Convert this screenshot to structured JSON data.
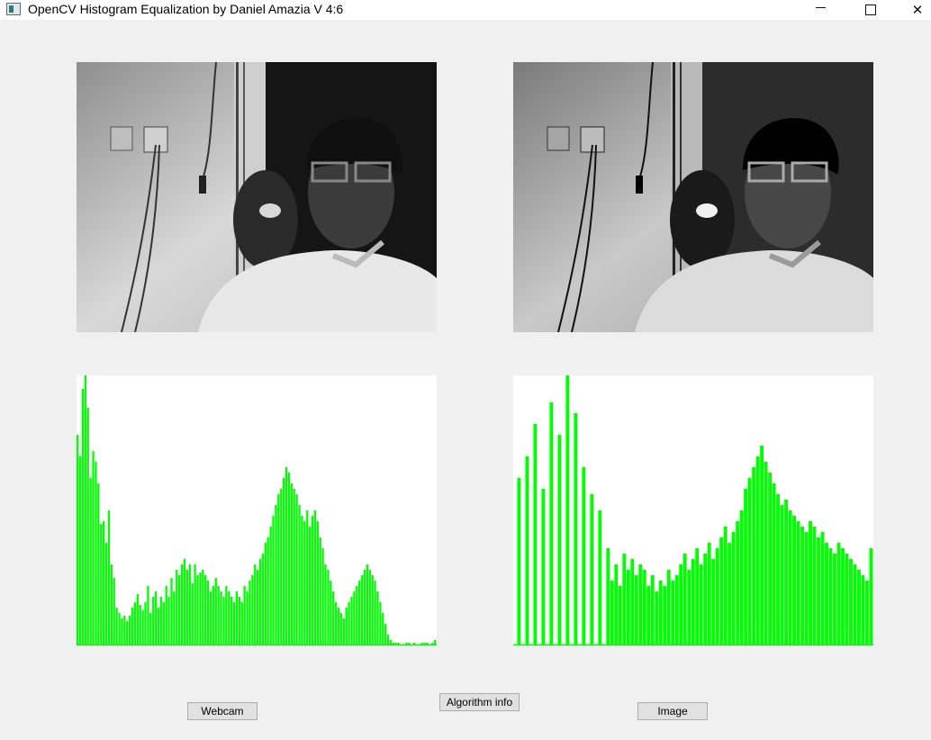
{
  "window": {
    "title": "OpenCV Histogram Equalization by Daniel Amazia V 4:6",
    "minimize_icon": "minimize-icon",
    "maximize_icon": "maximize-icon",
    "close_icon": "close-icon",
    "close_glyph": "✕"
  },
  "colors": {
    "histogram_bar": "#00ff00",
    "background": "#f0f0f0",
    "canvas": "#ffffff"
  },
  "buttons": {
    "webcam": "Webcam",
    "algorithm_info": "Algorithm info",
    "image": "Image"
  },
  "histograms": {
    "original": [
      78,
      70,
      95,
      100,
      88,
      62,
      72,
      68,
      60,
      45,
      46,
      38,
      50,
      30,
      25,
      14,
      12,
      10,
      11,
      9,
      11,
      14,
      16,
      19,
      15,
      13,
      16,
      22,
      12,
      18,
      20,
      14,
      18,
      16,
      22,
      18,
      25,
      20,
      28,
      26,
      30,
      32,
      28,
      30,
      23,
      30,
      26,
      27,
      28,
      26,
      24,
      20,
      22,
      25,
      22,
      20,
      18,
      22,
      20,
      18,
      16,
      20,
      18,
      16,
      22,
      20,
      24,
      26,
      30,
      28,
      32,
      34,
      38,
      40,
      44,
      48,
      52,
      56,
      58,
      62,
      66,
      64,
      60,
      58,
      56,
      52,
      48,
      46,
      50,
      44,
      48,
      50,
      46,
      40,
      36,
      30,
      28,
      24,
      20,
      16,
      14,
      12,
      10,
      14,
      16,
      18,
      20,
      22,
      24,
      26,
      28,
      30,
      28,
      26,
      24,
      20,
      16,
      12,
      8,
      4,
      2,
      1,
      1,
      1,
      0,
      0,
      1,
      1,
      0,
      1,
      0,
      0,
      1,
      1,
      1,
      0,
      1,
      2
    ],
    "equalized": [
      0,
      62,
      0,
      70,
      0,
      82,
      0,
      58,
      0,
      90,
      0,
      78,
      0,
      100,
      0,
      86,
      0,
      66,
      0,
      56,
      0,
      50,
      0,
      36,
      24,
      30,
      22,
      34,
      28,
      32,
      26,
      30,
      28,
      22,
      26,
      20,
      24,
      22,
      28,
      24,
      26,
      30,
      34,
      28,
      32,
      36,
      30,
      34,
      38,
      32,
      36,
      40,
      44,
      38,
      42,
      46,
      50,
      58,
      62,
      66,
      70,
      74,
      68,
      64,
      60,
      56,
      52,
      54,
      50,
      48,
      46,
      44,
      42,
      46,
      44,
      40,
      42,
      38,
      36,
      34,
      38,
      36,
      34,
      32,
      30,
      28,
      26,
      24,
      36
    ]
  }
}
